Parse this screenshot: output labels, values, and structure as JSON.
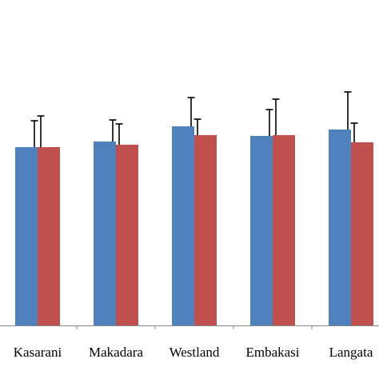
{
  "chart_data": {
    "type": "bar",
    "title": "",
    "xlabel": "",
    "ylabel": "",
    "categories": [
      "Kasarani",
      "Makadara",
      "Westland",
      "Embakasi",
      "Langata"
    ],
    "series": [
      {
        "color": "#4F81BD",
        "values": [
          223,
          230,
          249,
          237,
          245
        ],
        "errors": [
          33,
          27,
          36,
          33,
          47
        ]
      },
      {
        "color": "#C0504D",
        "values": [
          223,
          226,
          238,
          238,
          229
        ],
        "errors": [
          39,
          26,
          20,
          45,
          24
        ]
      }
    ],
    "ylim": [
      0,
      404
    ],
    "grid": false,
    "legend": "none"
  }
}
